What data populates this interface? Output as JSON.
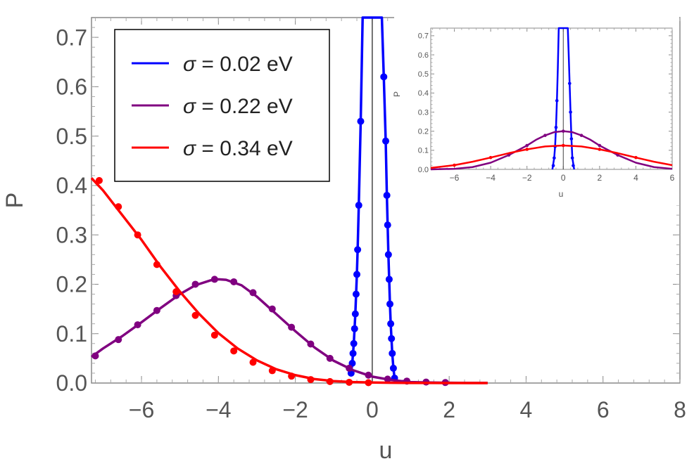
{
  "chart_data": [
    {
      "type": "line",
      "title": "",
      "xlabel": "u",
      "ylabel": "P",
      "xlim": [
        -7.3,
        8
      ],
      "ylim": [
        0,
        0.74
      ],
      "x_ticks": [
        -6,
        -4,
        -2,
        0,
        2,
        4,
        6,
        8
      ],
      "x_tick_labels": [
        "−6",
        "−4",
        "−2",
        "0",
        "2",
        "4",
        "6",
        "8"
      ],
      "y_ticks": [
        0,
        0.1,
        0.2,
        0.3,
        0.4,
        0.5,
        0.6,
        0.7
      ],
      "y_tick_labels": [
        "0.0",
        "0.1",
        "0.2",
        "0.3",
        "0.4",
        "0.5",
        "0.6",
        "0.7"
      ],
      "legend": {
        "position": "top-left",
        "entries": [
          {
            "symbol": "σ",
            "text": " = 0.02 eV",
            "color": "#0000ff"
          },
          {
            "symbol": "σ",
            "text": " = 0.22 eV",
            "color": "#800080"
          },
          {
            "symbol": "σ",
            "text": " = 0.34 eV",
            "color": "#ff0000"
          }
        ]
      },
      "series": [
        {
          "name": "σ = 0.02 eV",
          "color": "#0000ff",
          "x": [
            -0.55,
            -0.52,
            -0.5,
            -0.48,
            -0.46,
            -0.44,
            -0.42,
            -0.4,
            -0.38,
            -0.35,
            -0.3,
            -0.25,
            0.25,
            0.3,
            0.35,
            0.38,
            0.4,
            0.42,
            0.44,
            0.46,
            0.48,
            0.5,
            0.52,
            0.55,
            0.58
          ],
          "y": [
            0.02,
            0.04,
            0.06,
            0.08,
            0.11,
            0.14,
            0.18,
            0.22,
            0.27,
            0.36,
            0.53,
            0.74,
            0.74,
            0.62,
            0.49,
            0.38,
            0.32,
            0.26,
            0.21,
            0.16,
            0.12,
            0.09,
            0.06,
            0.03,
            0.01
          ],
          "markers_x": [
            -0.55,
            -0.52,
            -0.5,
            -0.48,
            -0.46,
            -0.44,
            -0.42,
            -0.4,
            -0.38,
            -0.35,
            -0.3,
            0.3,
            0.35,
            0.38,
            0.4,
            0.42,
            0.44,
            0.46,
            0.48,
            0.5,
            0.52,
            0.55,
            0.58
          ],
          "markers_y": [
            0.02,
            0.04,
            0.06,
            0.08,
            0.11,
            0.14,
            0.18,
            0.22,
            0.27,
            0.36,
            0.53,
            0.62,
            0.49,
            0.38,
            0.32,
            0.26,
            0.21,
            0.16,
            0.12,
            0.09,
            0.06,
            0.03,
            0.01
          ]
        },
        {
          "name": "σ = 0.22 eV",
          "color": "#800080",
          "x": [
            -7.3,
            -7.0,
            -6.5,
            -6.0,
            -5.5,
            -5.0,
            -4.6,
            -4.2,
            -4.0,
            -3.8,
            -3.4,
            -3.0,
            -2.5,
            -2.0,
            -1.5,
            -1.0,
            -0.5,
            0.0,
            0.5,
            1.0,
            1.5,
            2.0,
            2.5,
            3.0
          ],
          "y": [
            0.053,
            0.07,
            0.095,
            0.123,
            0.152,
            0.18,
            0.198,
            0.208,
            0.21,
            0.209,
            0.198,
            0.175,
            0.14,
            0.105,
            0.072,
            0.045,
            0.026,
            0.013,
            0.006,
            0.002,
            0.001,
            0.0005,
            0.0002,
            0.0001
          ],
          "markers_x": [
            -7.2,
            -6.6,
            -6.1,
            -5.6,
            -5.1,
            -4.6,
            -4.1,
            -3.6,
            -3.1,
            -2.6,
            -2.1,
            -1.6,
            -1.1,
            -0.6,
            -0.1,
            0.4,
            0.9,
            1.4,
            1.9
          ],
          "markers_y": [
            0.055,
            0.088,
            0.118,
            0.147,
            0.177,
            0.2,
            0.21,
            0.205,
            0.183,
            0.15,
            0.113,
            0.079,
            0.05,
            0.03,
            0.016,
            0.008,
            0.004,
            0.002,
            0.001
          ]
        },
        {
          "name": "σ = 0.34 eV",
          "color": "#ff0000",
          "x": [
            -7.3,
            -7.0,
            -6.5,
            -6.0,
            -5.5,
            -5.0,
            -4.5,
            -4.0,
            -3.5,
            -3.0,
            -2.5,
            -2.0,
            -1.5,
            -1.0,
            -0.5,
            0.0,
            0.5,
            1.0,
            1.5,
            2.0,
            3.0
          ],
          "y": [
            0.415,
            0.39,
            0.34,
            0.29,
            0.235,
            0.185,
            0.14,
            0.101,
            0.07,
            0.046,
            0.028,
            0.016,
            0.008,
            0.004,
            0.002,
            0.001,
            0.0005,
            0.0002,
            0.0001,
            0.0,
            0.0
          ],
          "markers_x": [
            -7.1,
            -6.6,
            -6.1,
            -5.6,
            -5.1,
            -4.6,
            -4.1,
            -3.6,
            -3.1,
            -2.6,
            -2.1,
            -1.6,
            -1.1,
            -0.6,
            -0.1
          ],
          "markers_y": [
            0.41,
            0.357,
            0.3,
            0.24,
            0.185,
            0.137,
            0.097,
            0.065,
            0.042,
            0.025,
            0.014,
            0.007,
            0.003,
            0.0015,
            0.0007
          ]
        }
      ]
    },
    {
      "type": "line",
      "title": "",
      "xlabel": "u",
      "ylabel": "P",
      "xlim": [
        -7.3,
        6
      ],
      "ylim": [
        0,
        0.74
      ],
      "x_ticks": [
        -6,
        -4,
        -2,
        0,
        2,
        4,
        6
      ],
      "x_tick_labels": [
        "−6",
        "−4",
        "−2",
        "0",
        "2",
        "4",
        "6"
      ],
      "y_ticks": [
        0,
        0.1,
        0.2,
        0.3,
        0.4,
        0.5,
        0.6,
        0.7
      ],
      "y_tick_labels": [
        "0.0",
        "0.1",
        "0.2",
        "0.3",
        "0.4",
        "0.5",
        "0.6",
        "0.7"
      ],
      "series": [
        {
          "name": "σ = 0.02 eV",
          "color": "#0000ff",
          "x": [
            -0.6,
            -0.5,
            -0.45,
            -0.4,
            -0.35,
            -0.3,
            -0.25,
            0.25,
            0.3,
            0.35,
            0.4,
            0.45,
            0.5,
            0.6
          ],
          "y": [
            0.0,
            0.06,
            0.12,
            0.22,
            0.36,
            0.53,
            0.74,
            0.74,
            0.6,
            0.45,
            0.3,
            0.16,
            0.06,
            0.0
          ],
          "markers_x": [
            -0.55,
            -0.5,
            -0.45,
            -0.4,
            -0.35,
            0.35,
            0.4,
            0.45,
            0.5,
            0.55
          ],
          "markers_y": [
            0.02,
            0.06,
            0.12,
            0.22,
            0.36,
            0.45,
            0.3,
            0.16,
            0.06,
            0.02
          ]
        },
        {
          "name": "σ = 0.22 eV",
          "color": "#800080",
          "x": [
            -7.3,
            -6.0,
            -5.0,
            -4.0,
            -3.0,
            -2.0,
            -1.5,
            -1.0,
            -0.5,
            0.0,
            0.5,
            1.0,
            1.5,
            2.0,
            3.0,
            4.0,
            5.0,
            6.0
          ],
          "y": [
            0.0,
            0.003,
            0.012,
            0.035,
            0.075,
            0.125,
            0.155,
            0.178,
            0.195,
            0.2,
            0.195,
            0.178,
            0.155,
            0.125,
            0.075,
            0.035,
            0.012,
            0.003
          ],
          "markers_x": [
            -3.0,
            -2.0,
            -1.0,
            0.0,
            1.0,
            2.0,
            3.0
          ],
          "markers_y": [
            0.075,
            0.125,
            0.178,
            0.2,
            0.178,
            0.125,
            0.075
          ]
        },
        {
          "name": "σ = 0.34 eV",
          "color": "#ff0000",
          "x": [
            -7.3,
            -6.0,
            -5.0,
            -4.0,
            -3.0,
            -2.0,
            -1.0,
            0.0,
            1.0,
            2.0,
            3.0,
            4.0,
            5.0,
            6.0
          ],
          "y": [
            0.008,
            0.022,
            0.04,
            0.062,
            0.085,
            0.105,
            0.12,
            0.125,
            0.12,
            0.105,
            0.085,
            0.062,
            0.04,
            0.022
          ],
          "markers_x": [
            -6.0,
            -4.0,
            -2.0,
            0.0,
            2.0,
            4.0
          ],
          "markers_y": [
            0.022,
            0.062,
            0.105,
            0.125,
            0.105,
            0.062
          ]
        }
      ]
    }
  ]
}
